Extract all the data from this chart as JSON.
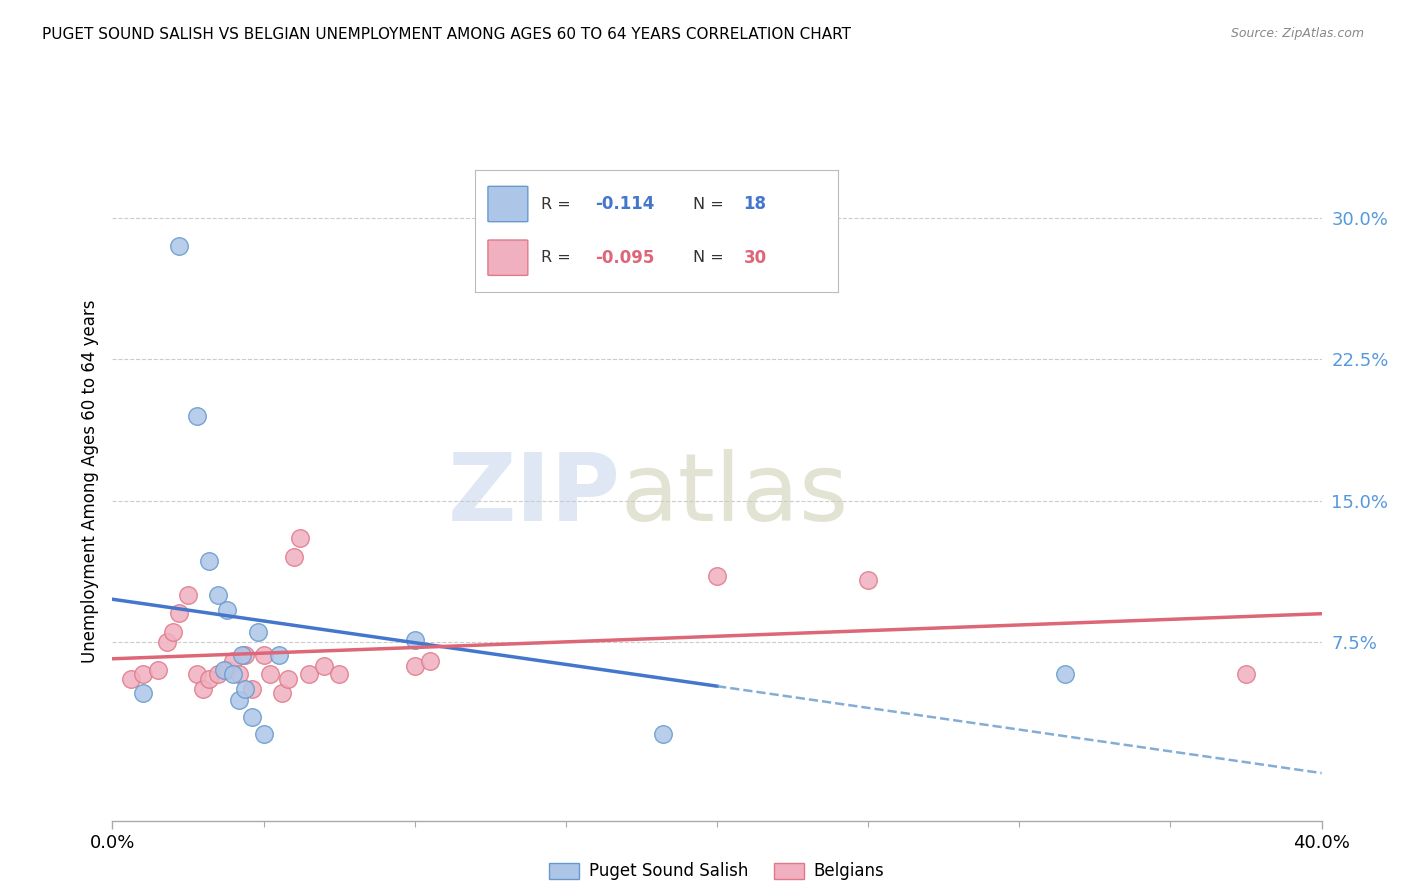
{
  "title": "PUGET SOUND SALISH VS BELGIAN UNEMPLOYMENT AMONG AGES 60 TO 64 YEARS CORRELATION CHART",
  "source": "Source: ZipAtlas.com",
  "ylabel": "Unemployment Among Ages 60 to 64 years",
  "xlim": [
    0.0,
    0.4
  ],
  "ylim": [
    -0.02,
    0.34
  ],
  "yticks": [
    0.075,
    0.15,
    0.225,
    0.3
  ],
  "ytick_labels": [
    "7.5%",
    "15.0%",
    "22.5%",
    "30.0%"
  ],
  "xtick_vals": [
    0.0,
    0.05,
    0.1,
    0.15,
    0.2,
    0.25,
    0.3,
    0.35,
    0.4
  ],
  "blue_color": "#adc6e8",
  "blue_edge": "#6699cc",
  "pink_color": "#f0b0c0",
  "pink_edge": "#e07888",
  "trend_blue": "#4477cc",
  "trend_pink": "#dd6677",
  "ytick_color": "#5599dd",
  "watermark_zip": "ZIP",
  "watermark_atlas": "atlas",
  "puget_x": [
    0.01,
    0.022,
    0.028,
    0.032,
    0.035,
    0.037,
    0.038,
    0.04,
    0.042,
    0.043,
    0.044,
    0.046,
    0.048,
    0.05,
    0.055,
    0.1,
    0.182,
    0.315
  ],
  "puget_y": [
    0.048,
    0.285,
    0.195,
    0.118,
    0.1,
    0.06,
    0.092,
    0.058,
    0.044,
    0.068,
    0.05,
    0.035,
    0.08,
    0.026,
    0.068,
    0.076,
    0.026,
    0.058
  ],
  "belgian_x": [
    0.006,
    0.01,
    0.015,
    0.018,
    0.02,
    0.022,
    0.025,
    0.028,
    0.03,
    0.032,
    0.035,
    0.038,
    0.04,
    0.042,
    0.044,
    0.046,
    0.05,
    0.052,
    0.056,
    0.058,
    0.06,
    0.062,
    0.065,
    0.07,
    0.075,
    0.1,
    0.105,
    0.2,
    0.25,
    0.375
  ],
  "belgian_y": [
    0.055,
    0.058,
    0.06,
    0.075,
    0.08,
    0.09,
    0.1,
    0.058,
    0.05,
    0.055,
    0.058,
    0.06,
    0.065,
    0.058,
    0.068,
    0.05,
    0.068,
    0.058,
    0.048,
    0.055,
    0.12,
    0.13,
    0.058,
    0.062,
    0.058,
    0.062,
    0.065,
    0.11,
    0.108,
    0.058
  ],
  "legend_blue_r": "-0.114",
  "legend_blue_n": "18",
  "legend_pink_r": "-0.095",
  "legend_pink_n": "30"
}
